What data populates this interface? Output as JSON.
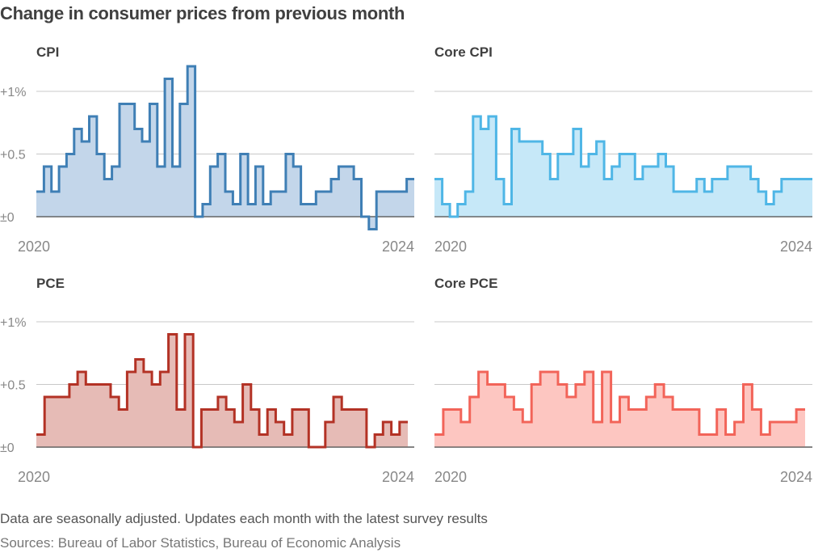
{
  "header": {
    "title": "Change in consumer prices from previous month"
  },
  "footer": {
    "note": "Data are seasonally adjusted. Updates each month with the latest survey results",
    "source": "Sources: Bureau of Labor Statistics, Bureau of Economic Analysis"
  },
  "chart_data": [
    {
      "type": "area",
      "title": "CPI",
      "x_start_label": "2020",
      "x_end_label": "2024",
      "y_ticks": [
        {
          "value": 0,
          "label": "±0"
        },
        {
          "value": 0.5,
          "label": "+0.5"
        },
        {
          "value": 1,
          "label": "+1%"
        }
      ],
      "ylim": [
        -0.1,
        1.2
      ],
      "line_color": "#3f7fb5",
      "fill_color": "#c3d6ea",
      "series": [
        {
          "values": [
            0.2,
            0.4,
            0.2,
            0.4,
            0.5,
            0.7,
            0.6,
            0.8,
            0.5,
            0.3,
            0.4,
            0.9,
            0.9,
            0.7,
            0.6,
            0.9,
            0.4,
            1.1,
            0.4,
            0.9,
            1.2,
            0.0,
            0.1,
            0.4,
            0.5,
            0.2,
            0.1,
            0.5,
            0.1,
            0.4,
            0.1,
            0.2,
            0.2,
            0.5,
            0.4,
            0.1,
            0.1,
            0.2,
            0.2,
            0.3,
            0.4,
            0.4,
            0.3,
            0.0,
            -0.1,
            0.2,
            0.2,
            0.2,
            0.2,
            0.3
          ]
        }
      ]
    },
    {
      "type": "area",
      "title": "Core CPI",
      "x_start_label": "2020",
      "x_end_label": "2024",
      "y_ticks": [
        {
          "value": 0,
          "label": ""
        },
        {
          "value": 0.5,
          "label": ""
        },
        {
          "value": 1,
          "label": ""
        }
      ],
      "ylim": [
        -0.1,
        1.2
      ],
      "line_color": "#4fb6e6",
      "fill_color": "#c6e8f8",
      "series": [
        {
          "values": [
            0.3,
            0.1,
            0.0,
            0.1,
            0.2,
            0.8,
            0.7,
            0.8,
            0.3,
            0.1,
            0.7,
            0.6,
            0.6,
            0.6,
            0.5,
            0.3,
            0.5,
            0.5,
            0.7,
            0.4,
            0.5,
            0.6,
            0.3,
            0.4,
            0.5,
            0.5,
            0.3,
            0.4,
            0.4,
            0.5,
            0.4,
            0.2,
            0.2,
            0.2,
            0.3,
            0.2,
            0.3,
            0.3,
            0.4,
            0.4,
            0.4,
            0.3,
            0.2,
            0.1,
            0.2,
            0.3,
            0.3,
            0.3,
            0.3
          ]
        }
      ]
    },
    {
      "type": "area",
      "title": "PCE",
      "x_start_label": "2020",
      "x_end_label": "2024",
      "y_ticks": [
        {
          "value": 0,
          "label": "±0"
        },
        {
          "value": 0.5,
          "label": "+0.5"
        },
        {
          "value": 1,
          "label": "+1%"
        }
      ],
      "ylim": [
        -0.1,
        1.2
      ],
      "line_color": "#b33225",
      "fill_color": "#e6bbb6",
      "series": [
        {
          "values": [
            0.1,
            0.4,
            0.4,
            0.4,
            0.5,
            0.6,
            0.5,
            0.5,
            0.5,
            0.4,
            0.3,
            0.6,
            0.7,
            0.6,
            0.5,
            0.6,
            0.9,
            0.3,
            0.9,
            0.0,
            0.3,
            0.3,
            0.4,
            0.3,
            0.2,
            0.5,
            0.3,
            0.1,
            0.3,
            0.2,
            0.1,
            0.3,
            0.3,
            0.0,
            0.0,
            0.2,
            0.4,
            0.3,
            0.3,
            0.3,
            0.0,
            0.1,
            0.2,
            0.1,
            0.2
          ]
        }
      ]
    },
    {
      "type": "area",
      "title": "Core PCE",
      "x_start_label": "2020",
      "x_end_label": "2024",
      "y_ticks": [
        {
          "value": 0,
          "label": ""
        },
        {
          "value": 0.5,
          "label": ""
        },
        {
          "value": 1,
          "label": ""
        }
      ],
      "ylim": [
        -0.1,
        1.2
      ],
      "line_color": "#f26459",
      "fill_color": "#fdc6c1",
      "series": [
        {
          "values": [
            0.1,
            0.3,
            0.3,
            0.2,
            0.4,
            0.6,
            0.5,
            0.5,
            0.4,
            0.3,
            0.2,
            0.5,
            0.6,
            0.6,
            0.5,
            0.4,
            0.5,
            0.6,
            0.2,
            0.6,
            0.2,
            0.4,
            0.3,
            0.3,
            0.4,
            0.5,
            0.4,
            0.3,
            0.3,
            0.3,
            0.1,
            0.1,
            0.3,
            0.1,
            0.2,
            0.5,
            0.3,
            0.1,
            0.2,
            0.2,
            0.2,
            0.3
          ]
        }
      ]
    }
  ]
}
